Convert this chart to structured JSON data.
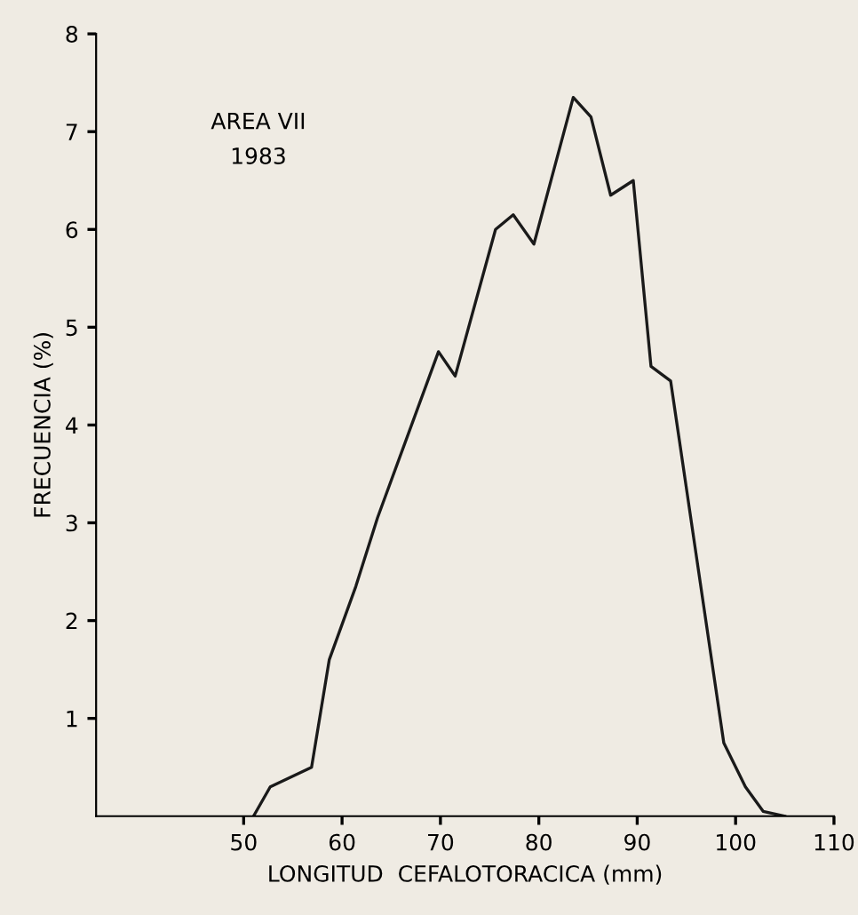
{
  "chart_data": {
    "type": "line",
    "xlabel": "LONGITUD  CEFALOTORACICA (mm)",
    "ylabel": "FRECUENCIA (%)",
    "annotations": [
      "AREA VII\n1983"
    ],
    "series": [
      {
        "color": "#1a1a1a",
        "x": [
          51,
          52.7,
          56.9,
          58.7,
          61.4,
          63.6,
          69.8,
          71.5,
          75.6,
          77.4,
          79.5,
          83.5,
          85.3,
          87.3,
          89.6,
          91.4,
          93.4,
          98.8,
          101,
          102.8,
          105
        ],
        "values": [
          0,
          0.3,
          0.5,
          1.6,
          2.35,
          3.05,
          4.75,
          4.5,
          6.0,
          6.15,
          5.85,
          7.35,
          7.15,
          6.35,
          6.5,
          4.6,
          4.45,
          0.75,
          0.3,
          0.05,
          0
        ]
      }
    ],
    "xlim": [
      35,
      110
    ],
    "ylim": [
      0,
      8
    ],
    "xticks": [
      50,
      60,
      70,
      80,
      90,
      100,
      110
    ],
    "yticks": [
      1,
      2,
      3,
      4,
      5,
      6,
      7,
      8
    ],
    "grid": false,
    "legend": false,
    "marker": "none",
    "line_style": "solid"
  }
}
